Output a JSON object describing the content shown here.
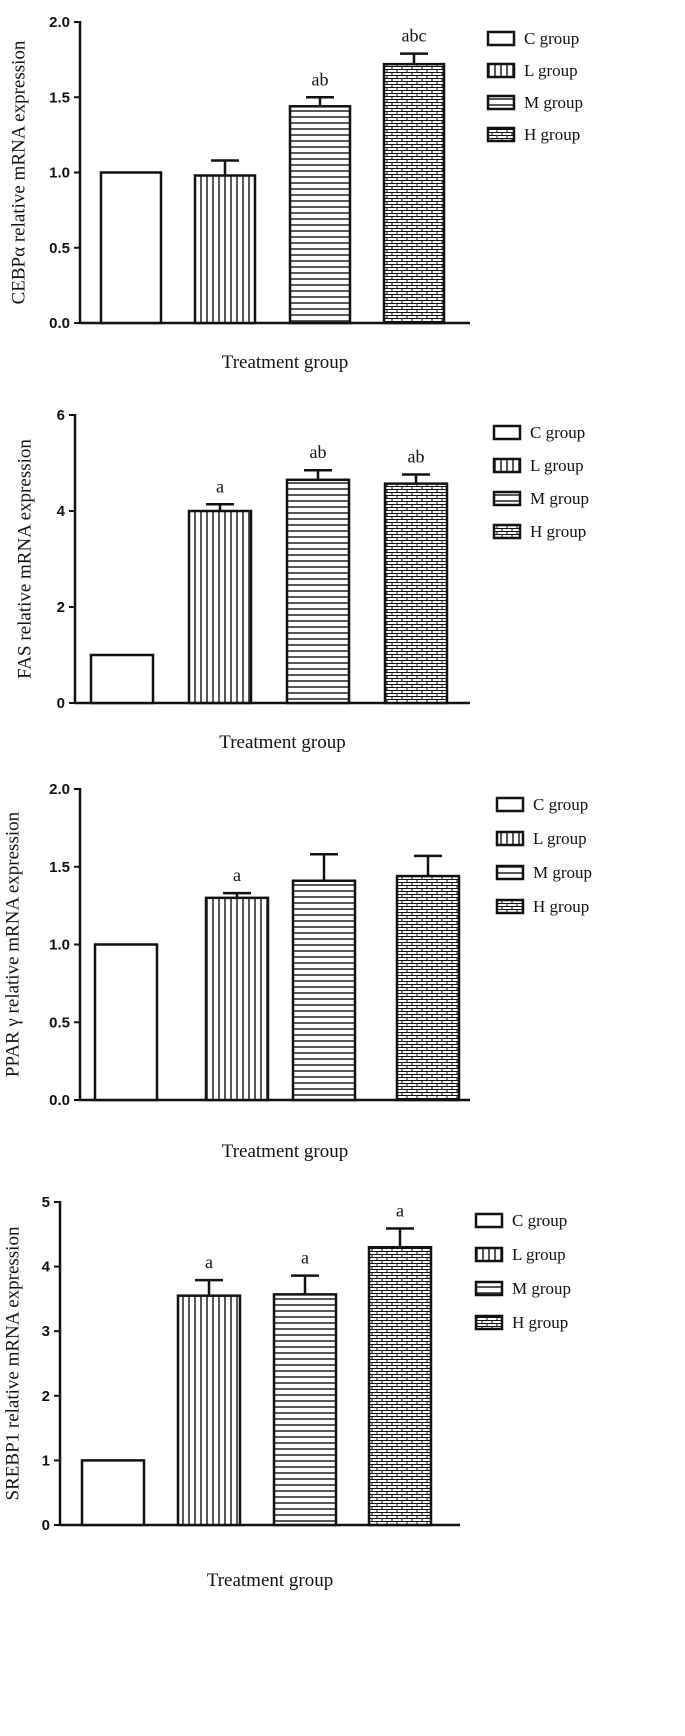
{
  "figure": {
    "background": "#ffffff",
    "ink": "#111111"
  },
  "chart_data": [
    {
      "type": "bar",
      "categories": [
        "C group",
        "L group",
        "M group",
        "H group"
      ],
      "values": [
        1.0,
        0.98,
        1.44,
        1.72
      ],
      "errors": [
        0,
        0.1,
        0.06,
        0.07
      ],
      "significance": [
        "",
        "",
        "ab",
        "abc"
      ],
      "ylabel": "CEBPα relative mRNA  expression",
      "xlabel": "Treatment group",
      "ylim": [
        0,
        2.0
      ],
      "yticks": [
        "0.0",
        "0.5",
        "1.0",
        "1.5",
        "2.0"
      ],
      "legend": [
        "C group",
        "L group",
        "M group",
        "H group"
      ],
      "legend_position": "top-right"
    },
    {
      "type": "bar",
      "categories": [
        "C group",
        "L group",
        "M group",
        "H group"
      ],
      "values": [
        1.0,
        4.0,
        4.65,
        4.57
      ],
      "errors": [
        0,
        0.14,
        0.2,
        0.19
      ],
      "significance": [
        "",
        "a",
        "ab",
        "ab"
      ],
      "ylabel": "FAS relative mRNA expression",
      "xlabel": "Treatment group",
      "ylim": [
        0,
        6
      ],
      "yticks": [
        "0",
        "2",
        "4",
        "6"
      ],
      "legend": [
        "C  group",
        "L  group",
        "M group",
        "H group"
      ],
      "legend_position": "top-right"
    },
    {
      "type": "bar",
      "categories": [
        "C group",
        "L group",
        "M group",
        "H group"
      ],
      "values": [
        1.0,
        1.3,
        1.41,
        1.44
      ],
      "errors": [
        0,
        0.03,
        0.17,
        0.13
      ],
      "significance": [
        "",
        "a",
        "",
        ""
      ],
      "ylabel": "PPAR γ relative mRNA expression",
      "xlabel": "Treatment group",
      "ylim": [
        0,
        2.0
      ],
      "yticks": [
        "0.0",
        "0.5",
        "1.0",
        "1.5",
        "2.0"
      ],
      "legend": [
        "C group",
        "L  group",
        "M group",
        "H group"
      ],
      "legend_position": "top-right"
    },
    {
      "type": "bar",
      "categories": [
        "C group",
        "L group",
        "M group",
        "H group"
      ],
      "values": [
        1.0,
        3.55,
        3.57,
        4.3
      ],
      "errors": [
        0,
        0.24,
        0.29,
        0.29
      ],
      "significance": [
        "",
        "a",
        "a",
        "a"
      ],
      "ylabel": "SREBP1 relative mRNA expression",
      "xlabel": "Treatment group",
      "ylim": [
        0,
        5
      ],
      "yticks": [
        "0",
        "1",
        "2",
        "3",
        "4",
        "5"
      ],
      "legend": [
        "C group",
        "L  group",
        "M group",
        "H group"
      ],
      "legend_position": "top-right"
    }
  ]
}
